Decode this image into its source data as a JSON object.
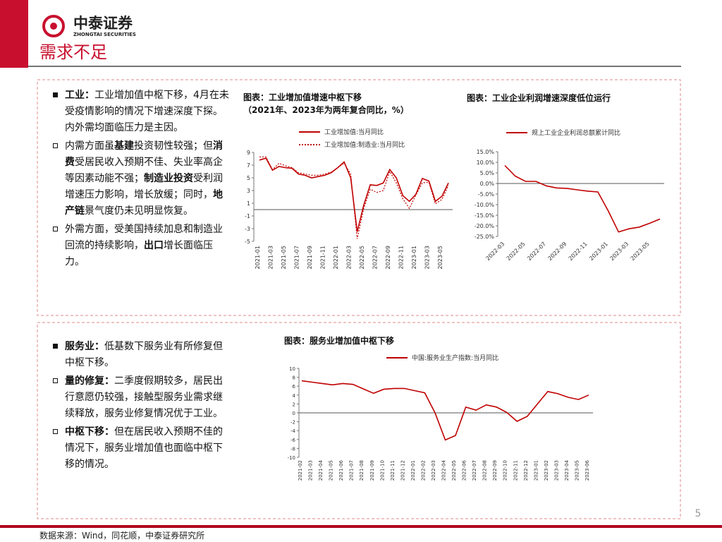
{
  "header": {
    "logo_text": "中泰证券",
    "logo_sub": "ZHONGTAI SECURITIES",
    "title": "需求不足"
  },
  "boxes": [
    {
      "bullets": [
        {
          "marker": "filled",
          "runs": [
            {
              "text": "工业：",
              "bold": true
            },
            {
              "text": "工业增加值中枢下移，4月在未受疫情影响的情况下增速深度下探。内外需均面临压力是主因。",
              "bold": false
            }
          ]
        },
        {
          "marker": "hollow",
          "runs": [
            {
              "text": "内需方面虽",
              "bold": false
            },
            {
              "text": "基建",
              "bold": true
            },
            {
              "text": "投资韧性较强；但",
              "bold": false
            },
            {
              "text": "消费",
              "bold": true
            },
            {
              "text": "受居民收入预期不佳、失业率高企等因素动能不强；",
              "bold": false
            },
            {
              "text": "制造业投资",
              "bold": true
            },
            {
              "text": "受利润增速压力影响，增长放缓；同时，",
              "bold": false
            },
            {
              "text": "地产链",
              "bold": true
            },
            {
              "text": "景气度仍未见明显恢复。",
              "bold": false
            }
          ]
        },
        {
          "marker": "hollow",
          "runs": [
            {
              "text": "外需方面，受美国持续加息和制造业回流的持续影响，",
              "bold": false
            },
            {
              "text": "出口",
              "bold": true
            },
            {
              "text": "增长面临压力。",
              "bold": false
            }
          ]
        }
      ]
    },
    {
      "bullets": [
        {
          "marker": "filled",
          "runs": [
            {
              "text": "服务业：",
              "bold": true
            },
            {
              "text": "低基数下服务业有所修复但中枢下移。",
              "bold": false
            }
          ]
        },
        {
          "marker": "hollow",
          "runs": [
            {
              "text": "量的修复：",
              "bold": true
            },
            {
              "text": "二季度假期较多，居民出行意愿仍较强，接触型服务业需求继续释放，服务业修复情况优于工业。",
              "bold": false
            }
          ]
        },
        {
          "marker": "hollow",
          "runs": [
            {
              "text": "中枢下移：",
              "bold": true
            },
            {
              "text": "但在居民收入预期不佳的情况下，服务业增加值也面临中枢下移的情况。",
              "bold": false
            }
          ]
        }
      ]
    }
  ],
  "charts": [
    {
      "type": "line",
      "title": "图表：工业增加值增速中枢下移",
      "subtitle": "（2021年、2023年为两年复合同比，%）",
      "categories": [
        "2021-01",
        null,
        "2021-03",
        null,
        "2021-05",
        null,
        "2021-07",
        null,
        "2021-09",
        null,
        "2021-11",
        null,
        "2022-01",
        null,
        "2022-03",
        null,
        "2022-05",
        null,
        "2022-07",
        null,
        "2022-09",
        null,
        "2022-11",
        null,
        "2023-01",
        null,
        "2023-03",
        null,
        "2023-05",
        null
      ],
      "series": [
        {
          "name": "工业增加值:当月同比",
          "color": "#c00000",
          "dashed": false,
          "values": [
            7.8,
            8.1,
            6.2,
            6.8,
            6.6,
            6.5,
            5.6,
            5.4,
            5.0,
            5.2,
            5.4,
            5.8,
            6.6,
            7.5,
            5.0,
            -3.5,
            0.7,
            3.9,
            3.8,
            4.2,
            6.3,
            5.0,
            2.2,
            1.3,
            2.4,
            4.9,
            4.5,
            1.3,
            2.1,
            4.2
          ]
        },
        {
          "name": "工业增加值:制造业:当月同比",
          "color": "#c00000",
          "dashed": true,
          "values": [
            8.3,
            8.3,
            6.3,
            7.3,
            6.9,
            6.6,
            5.8,
            5.6,
            5.4,
            5.4,
            5.6,
            5.9,
            6.6,
            7.3,
            5.6,
            -4.6,
            0.2,
            3.2,
            2.7,
            3.0,
            6.0,
            4.2,
            1.7,
            0.2,
            2.3,
            4.2,
            4.3,
            0.9,
            1.6,
            3.8
          ]
        }
      ],
      "ylim": [
        -5,
        9
      ],
      "yticks": [
        9,
        7,
        5,
        3,
        1,
        -1,
        -3,
        -5
      ]
    },
    {
      "type": "line",
      "title": "图表：工业企业利润增速深度低位运行",
      "categories": [
        "2022-03",
        null,
        "2022-05",
        null,
        "2022-07",
        null,
        "2022-09",
        null,
        "2022-11",
        null,
        "2023-01",
        null,
        "2023-03",
        null,
        "2023-05",
        null
      ],
      "series": [
        {
          "name": "规上工业企业利润总额累计同比",
          "color": "#c00000",
          "dashed": false,
          "values": [
            8.5,
            3.5,
            1.0,
            1.0,
            -1.1,
            -2.1,
            -2.3,
            -3.0,
            -3.6,
            -4.0,
            -13.0,
            -22.9,
            -21.4,
            -20.6,
            -18.8,
            -16.8
          ]
        }
      ],
      "ylim": [
        -25,
        15
      ],
      "yticks": [
        {
          "value": 15,
          "label": "15.0%"
        },
        {
          "value": 10,
          "label": "10.0%"
        },
        {
          "value": 5,
          "label": "5.0%"
        },
        {
          "value": 0,
          "label": "0.0%"
        },
        {
          "value": -5,
          "label": "-5.0%"
        },
        {
          "value": -10,
          "label": "-10.0%"
        },
        {
          "value": -15,
          "label": "-15.0%"
        },
        {
          "value": -20,
          "label": "-20.0%"
        },
        {
          "value": -25,
          "label": "-25.0%"
        }
      ]
    },
    {
      "type": "line",
      "title": "图表：服务业增加值中枢下移",
      "categories": [
        "2021-02",
        "2021-03",
        "2021-04",
        "2021-05",
        "2021-06",
        "2021-07",
        "2021-08",
        "2021-09",
        "2021-10",
        "2021-11",
        "2021-12",
        "2022-01",
        "2022-02",
        "2022-03",
        "2022-04",
        "2022-05",
        "2022-06",
        "2022-07",
        "2022-08",
        "2022-09",
        "2022-10",
        "2022-11",
        "2022-12",
        "2023-01",
        "2023-02",
        "2023-03",
        "2023-04",
        "2023-05",
        "2023-06"
      ],
      "series": [
        {
          "name": "中国:服务业生产指数:当月同比",
          "color": "#c00000",
          "dashed": false,
          "values": [
            7.2,
            6.9,
            6.6,
            6.3,
            6.6,
            6.4,
            5.4,
            4.4,
            5.3,
            5.5,
            5.5,
            5.0,
            4.5,
            0.0,
            -6.1,
            -5.1,
            1.3,
            0.6,
            1.8,
            1.3,
            0.1,
            -1.9,
            -0.8,
            2.0,
            4.8,
            4.3,
            3.5,
            3.0,
            4.0
          ]
        }
      ],
      "ylim": [
        -10,
        10
      ],
      "yticks": [
        10,
        8,
        6,
        4,
        2,
        0,
        -2,
        -4,
        -6,
        -8,
        -10
      ]
    }
  ],
  "footer": {
    "source": "数据来源：Wind，同花顺，中泰证券研究所",
    "page": "5"
  }
}
